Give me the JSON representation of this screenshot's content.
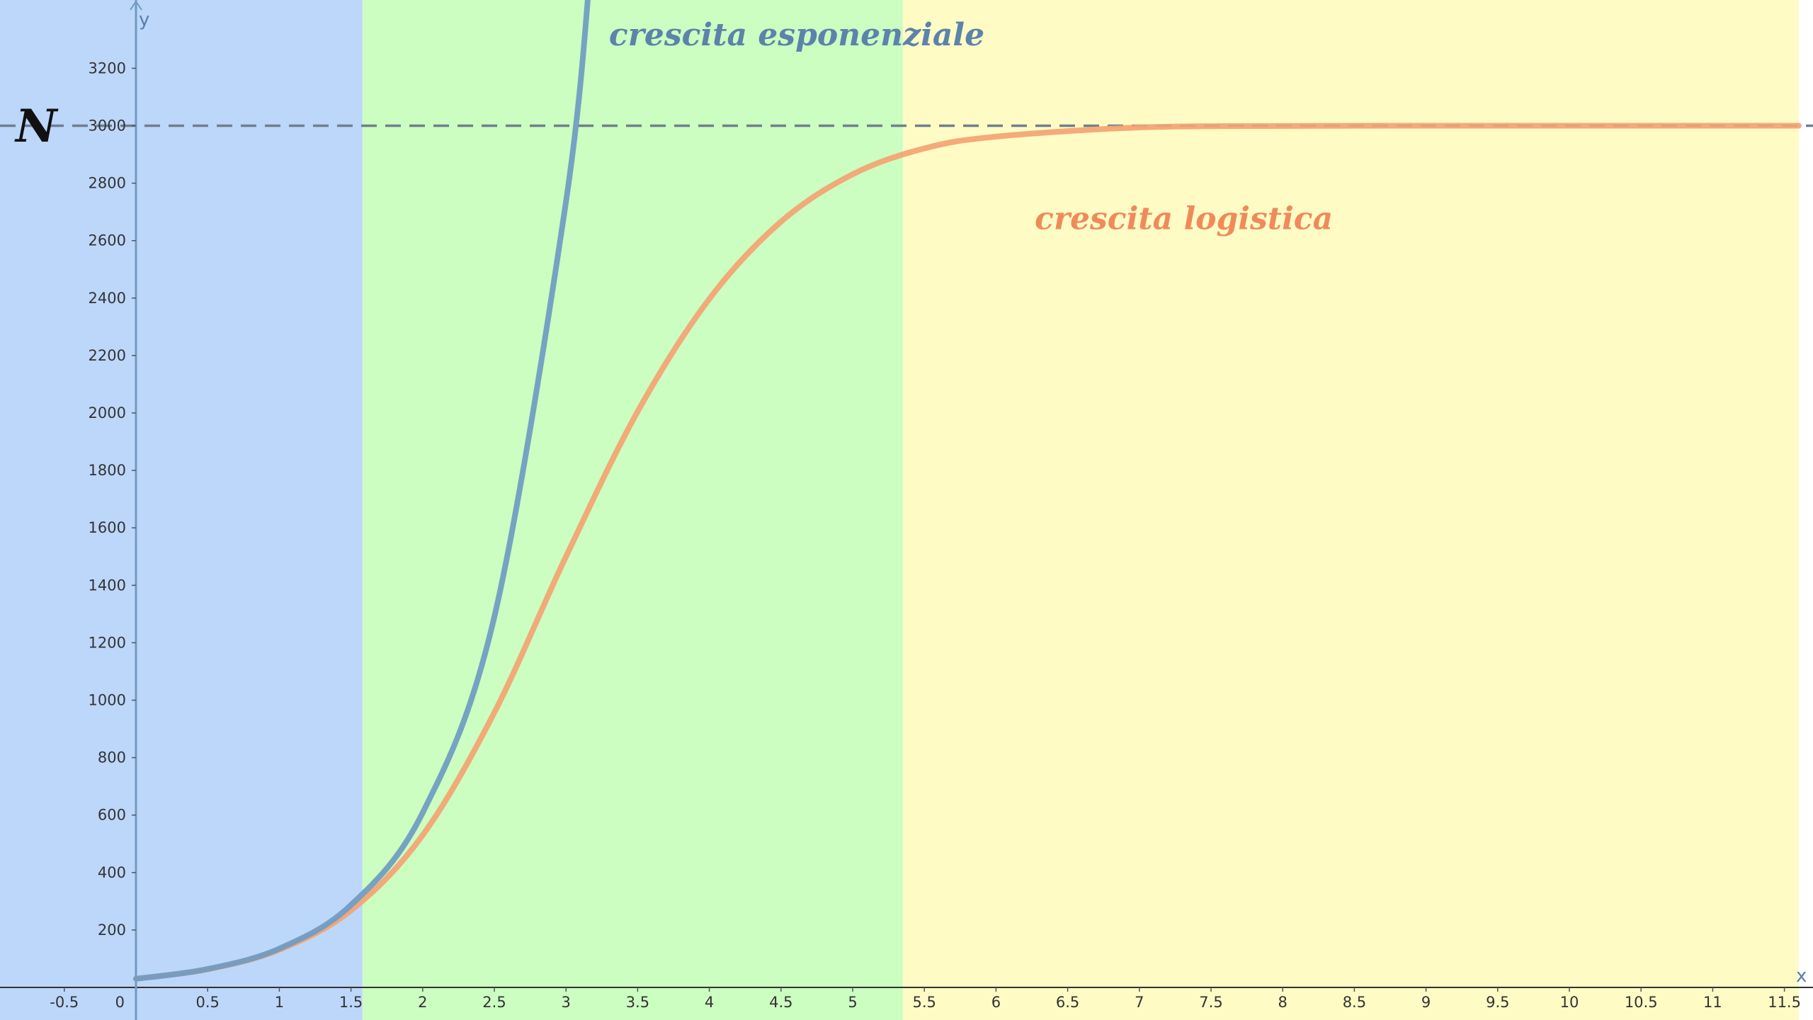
{
  "chart_data": {
    "type": "line",
    "title": "",
    "xlabel": "x",
    "ylabel": "N",
    "y_axis_letter": "y",
    "xlim": [
      -1.5,
      11.6
    ],
    "ylim": [
      -115,
      3530
    ],
    "x_ticks": [
      "-0.5",
      "0",
      "0.5",
      "1",
      "1.5",
      "2",
      "2.5",
      "3",
      "3.5",
      "4",
      "4.5",
      "5",
      "5.5",
      "6",
      "6.5",
      "7",
      "7.5",
      "8",
      "8.5",
      "9",
      "9.5",
      "10",
      "10.5",
      "11",
      "11.5"
    ],
    "y_ticks": [
      "200",
      "400",
      "600",
      "800",
      "1000",
      "1200",
      "1400",
      "1600",
      "1800",
      "2000",
      "2200",
      "2400",
      "2600",
      "2800",
      "3000",
      "3200"
    ],
    "regions": [
      {
        "x_from": -1.5,
        "x_to": 1.58,
        "color": "#bdd7fb"
      },
      {
        "x_from": 1.58,
        "x_to": 5.35,
        "color": "#ccfdc1"
      },
      {
        "x_from": 5.35,
        "x_to": 11.6,
        "color": "#fefbc5"
      }
    ],
    "carrying_capacity": {
      "y": 3000,
      "style": "dashed",
      "color": "#6f7f8f"
    },
    "series": [
      {
        "name": "crescita esponenziale",
        "label_color": "#5b83ab",
        "color": "#6f9bc2",
        "x": [
          0,
          0.5,
          1,
          1.5,
          2,
          2.5,
          3,
          3.17
        ],
        "y": [
          30,
          64,
          135,
          287,
          608,
          1290,
          2736,
          3540
        ]
      },
      {
        "name": "crescita logistica",
        "label_color": "#f08a5a",
        "color": "#f4a372",
        "x": [
          0,
          0.5,
          1,
          1.5,
          2,
          2.5,
          3,
          3.5,
          4,
          4.5,
          5,
          5.5,
          6,
          7,
          8,
          9,
          10,
          11,
          11.6
        ],
        "y": [
          30,
          63,
          131,
          268,
          530,
          957,
          1500,
          2005,
          2397,
          2666,
          2831,
          2921,
          2962,
          2994,
          2999,
          3000,
          3000,
          3000,
          3000
        ]
      }
    ],
    "annotations": [
      {
        "text": "crescita esponenziale",
        "x": 3.3,
        "y": 3280,
        "color": "#5b83ab"
      },
      {
        "text": "crescita logistica",
        "x": 6.27,
        "y": 2640,
        "color": "#f08a5a"
      }
    ]
  }
}
